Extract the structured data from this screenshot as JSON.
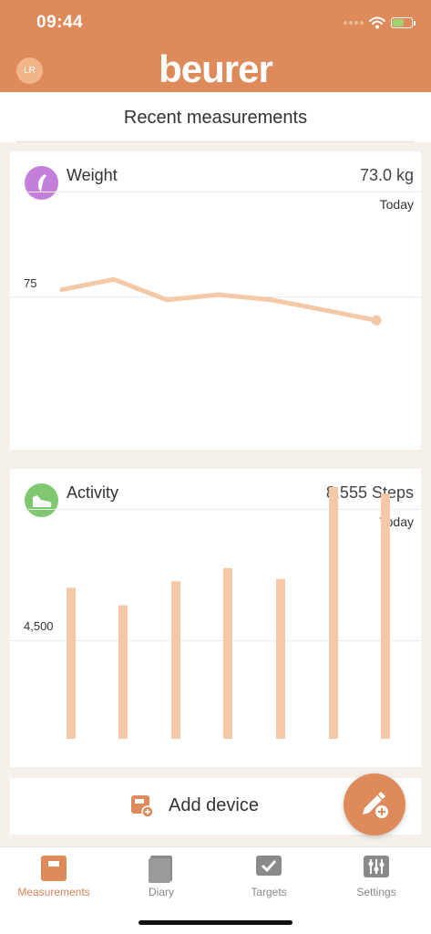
{
  "status_bar": {
    "time": "09:44"
  },
  "header": {
    "avatar_initials": "LR",
    "brand": "beurer"
  },
  "page": {
    "title": "Recent measurements"
  },
  "weight_card": {
    "label": "Weight",
    "value": "73.0 kg",
    "period": "Today",
    "ref_label": "75",
    "icon": "feather-icon",
    "icon_color": "#c37fd9"
  },
  "activity_card": {
    "label": "Activity",
    "value": "8,555 Steps",
    "period": "Today",
    "ref_label": "4,500",
    "icon": "shoe-icon",
    "icon_color": "#7fc86f"
  },
  "add_device": {
    "label": "Add device"
  },
  "tabs": [
    {
      "label": "Measurements",
      "icon": "measurements-icon",
      "active": true
    },
    {
      "label": "Diary",
      "icon": "diary-icon",
      "active": false
    },
    {
      "label": "Targets",
      "icon": "targets-icon",
      "active": false
    },
    {
      "label": "Settings",
      "icon": "settings-icon",
      "active": false
    }
  ],
  "colors": {
    "accent": "#de8a5a",
    "chart": "#f5c8a7"
  },
  "chart_data": [
    {
      "type": "line",
      "series": [
        {
          "values": [
            75.4,
            76.0,
            74.8,
            75.1,
            74.8,
            74.2,
            73.6
          ]
        }
      ],
      "reference_line": 75
    },
    {
      "type": "bar",
      "series": [
        {
          "values": [
            6900,
            6100,
            7200,
            7800,
            7300,
            11500,
            11200
          ]
        }
      ],
      "reference_line": 4500
    }
  ]
}
